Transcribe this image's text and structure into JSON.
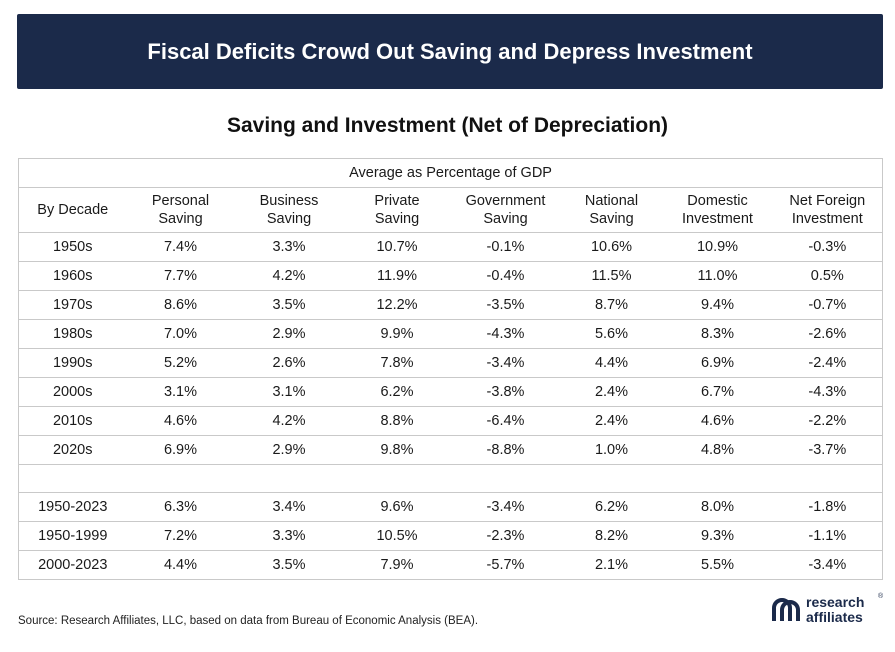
{
  "header": {
    "banner_title": "Fiscal Deficits Crowd Out Saving and Depress Investment",
    "subtitle": "Saving and Investment (Net of Depreciation)"
  },
  "chart_data": {
    "type": "table",
    "title": "Fiscal Deficits Crowd Out Saving and Depress Investment",
    "subtitle": "Saving and Investment (Net of Depreciation)",
    "super_header": "Average as Percentage of GDP",
    "columns": [
      [
        "By Decade"
      ],
      [
        "Personal",
        "Saving"
      ],
      [
        "Business",
        "Saving"
      ],
      [
        "Private",
        "Saving"
      ],
      [
        "Government",
        "Saving"
      ],
      [
        "National",
        "Saving"
      ],
      [
        "Domestic",
        "Investment"
      ],
      [
        "Net Foreign",
        "Investment"
      ]
    ],
    "rows": [
      [
        "1950s",
        "7.4%",
        "3.3%",
        "10.7%",
        "-0.1%",
        "10.6%",
        "10.9%",
        "-0.3%"
      ],
      [
        "1960s",
        "7.7%",
        "4.2%",
        "11.9%",
        "-0.4%",
        "11.5%",
        "11.0%",
        "0.5%"
      ],
      [
        "1970s",
        "8.6%",
        "3.5%",
        "12.2%",
        "-3.5%",
        "8.7%",
        "9.4%",
        "-0.7%"
      ],
      [
        "1980s",
        "7.0%",
        "2.9%",
        "9.9%",
        "-4.3%",
        "5.6%",
        "8.3%",
        "-2.6%"
      ],
      [
        "1990s",
        "5.2%",
        "2.6%",
        "7.8%",
        "-3.4%",
        "4.4%",
        "6.9%",
        "-2.4%"
      ],
      [
        "2000s",
        "3.1%",
        "3.1%",
        "6.2%",
        "-3.8%",
        "2.4%",
        "6.7%",
        "-4.3%"
      ],
      [
        "2010s",
        "4.6%",
        "4.2%",
        "8.8%",
        "-6.4%",
        "2.4%",
        "4.6%",
        "-2.2%"
      ],
      [
        "2020s",
        "6.9%",
        "2.9%",
        "9.8%",
        "-8.8%",
        "1.0%",
        "4.8%",
        "-3.7%"
      ]
    ],
    "summary_rows": [
      [
        "1950-2023",
        "6.3%",
        "3.4%",
        "9.6%",
        "-3.4%",
        "6.2%",
        "8.0%",
        "-1.8%"
      ],
      [
        "1950-1999",
        "7.2%",
        "3.3%",
        "10.5%",
        "-2.3%",
        "8.2%",
        "9.3%",
        "-1.1%"
      ],
      [
        "2000-2023",
        "4.4%",
        "3.5%",
        "7.9%",
        "-5.7%",
        "2.1%",
        "5.5%",
        "-3.4%"
      ]
    ]
  },
  "footer": {
    "source": "Source: Research Affiliates, LLC, based on data from Bureau of Economic Analysis (BEA).",
    "logo_line1": "research",
    "logo_line2": "affiliates",
    "logo_reg": "®"
  },
  "colors": {
    "banner_bg": "#1b2a4a",
    "banner_text": "#ffffff",
    "grid": "#c9c9c9",
    "logo": "#1b2a4a"
  }
}
